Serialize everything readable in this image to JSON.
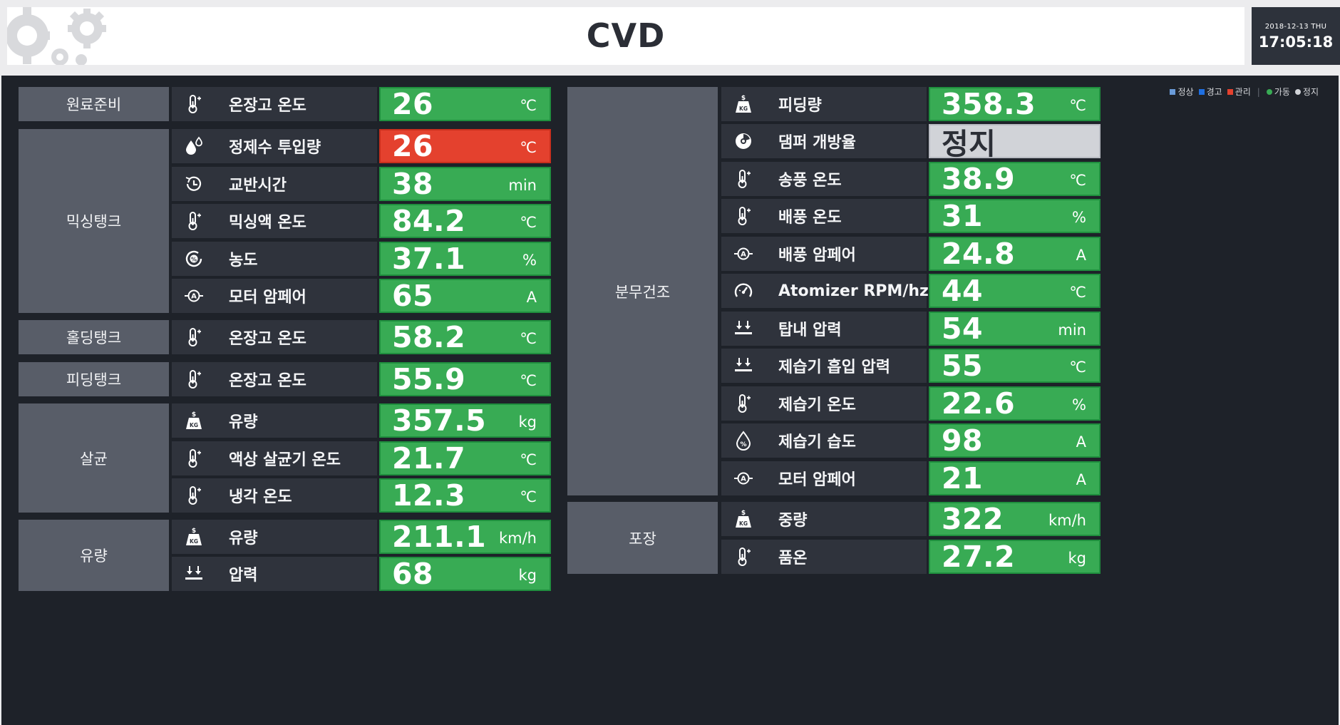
{
  "header": {
    "title": "CVD",
    "date": "2018-12-13 THU",
    "time": "17:05:18"
  },
  "legend": [
    {
      "label": "정상",
      "color": "#6a9bd8",
      "shape": "square"
    },
    {
      "label": "경고",
      "color": "#1f6fe0",
      "shape": "square"
    },
    {
      "label": "관리",
      "color": "#e4412e",
      "shape": "square"
    },
    {
      "label": "가동",
      "color": "#38ab54",
      "shape": "dot"
    },
    {
      "label": "정지",
      "color": "#d1d3d8",
      "shape": "dot"
    }
  ],
  "left": {
    "categories": [
      "원료준비",
      "믹싱탱크",
      "홀딩탱크",
      "피딩탱크",
      "살균",
      "유량"
    ],
    "rows": [
      {
        "icon": "thermometer-icon",
        "label": "온장고 온도",
        "value": "26",
        "unit": "℃",
        "status": "green"
      },
      {
        "icon": "water-drop-icon",
        "label": "정제수 투입량",
        "value": "26",
        "unit": "℃",
        "status": "red"
      },
      {
        "icon": "history-clock-icon",
        "label": "교반시간",
        "value": "38",
        "unit": "min",
        "status": "green"
      },
      {
        "icon": "thermometer-icon",
        "label": "믹싱액 온도",
        "value": "84.2",
        "unit": "℃",
        "status": "green"
      },
      {
        "icon": "concentration-icon",
        "label": "농도",
        "value": "37.1",
        "unit": "%",
        "status": "green"
      },
      {
        "icon": "ammeter-icon",
        "label": "모터 암페어",
        "value": "65",
        "unit": "A",
        "status": "green"
      },
      {
        "icon": "thermometer-icon",
        "label": "온장고 온도",
        "value": "58.2",
        "unit": "℃",
        "status": "green"
      },
      {
        "icon": "thermometer-icon",
        "label": "온장고 온도",
        "value": "55.9",
        "unit": "℃",
        "status": "green"
      },
      {
        "icon": "weight-kg-icon",
        "label": "유량",
        "value": "357.5",
        "unit": "kg",
        "status": "green"
      },
      {
        "icon": "thermometer-icon",
        "label": "액상 살균기 온도",
        "value": "21.7",
        "unit": "℃",
        "status": "green"
      },
      {
        "icon": "thermometer-icon",
        "label": "냉각 온도",
        "value": "12.3",
        "unit": "℃",
        "status": "green"
      },
      {
        "icon": "weight-kg-icon",
        "label": "유량",
        "value": "211.1",
        "unit": "km/h",
        "status": "green"
      },
      {
        "icon": "pressure-icon",
        "label": "압력",
        "value": "68",
        "unit": "kg",
        "status": "green"
      }
    ]
  },
  "right": {
    "categories": [
      "분무건조",
      "포장"
    ],
    "rows": [
      {
        "icon": "weight-kg-icon",
        "label": "피딩량",
        "value": "358.3",
        "unit": "℃",
        "status": "green"
      },
      {
        "icon": "damper-icon",
        "label": "댐퍼 개방율",
        "value": "정지",
        "unit": "",
        "status": "gray"
      },
      {
        "icon": "thermometer-icon",
        "label": "송풍 온도",
        "value": "38.9",
        "unit": "℃",
        "status": "green"
      },
      {
        "icon": "thermometer-icon",
        "label": "배풍 온도",
        "value": "31",
        "unit": "%",
        "status": "green"
      },
      {
        "icon": "ammeter-icon",
        "label": "배풍 암페어",
        "value": "24.8",
        "unit": "A",
        "status": "green"
      },
      {
        "icon": "gauge-icon",
        "label": "Atomizer RPM/hz",
        "value": "44",
        "unit": "℃",
        "status": "green"
      },
      {
        "icon": "pressure-icon",
        "label": "탑내 압력",
        "value": "54",
        "unit": "min",
        "status": "green"
      },
      {
        "icon": "pressure-icon",
        "label": "제습기 흡입 압력",
        "value": "55",
        "unit": "℃",
        "status": "green"
      },
      {
        "icon": "thermometer-icon",
        "label": "제습기 온도",
        "value": "22.6",
        "unit": "%",
        "status": "green"
      },
      {
        "icon": "humidity-icon",
        "label": "제습기 습도",
        "value": "98",
        "unit": "A",
        "status": "green"
      },
      {
        "icon": "ammeter-icon",
        "label": "모터 암페어",
        "value": "21",
        "unit": "A",
        "status": "green"
      },
      {
        "icon": "weight-kg-icon",
        "label": "중량",
        "value": "322",
        "unit": "km/h",
        "status": "green"
      },
      {
        "icon": "thermometer-icon",
        "label": "품온",
        "value": "27.2",
        "unit": "kg",
        "status": "green"
      }
    ]
  }
}
